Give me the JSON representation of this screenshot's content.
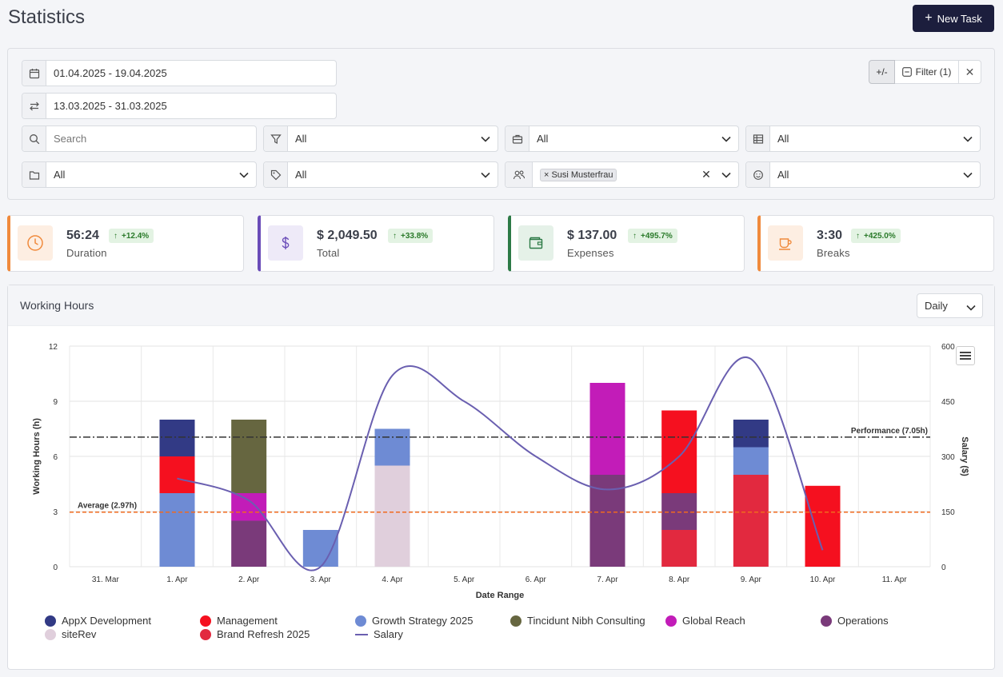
{
  "page": {
    "title": "Statistics",
    "new_task_label": "New Task"
  },
  "filters": {
    "date_range": "01.04.2025 - 19.04.2025",
    "compare_range": "13.03.2025 - 31.03.2025",
    "search_placeholder": "Search",
    "filter_all_1": "All",
    "project_all": "All",
    "table_all": "All",
    "folder_all": "All",
    "tag_all": "All",
    "user_chip": "Susi Musterfrau",
    "mood_all": "All",
    "plus_minus_label": "+/-",
    "filter_button_label": "Filter (1)"
  },
  "stats": [
    {
      "value": "56:24",
      "label": "Duration",
      "badge": "+12.4%",
      "accent": "#f08a3c",
      "icon": "clock-icon"
    },
    {
      "value": "$ 2,049.50",
      "label": "Total",
      "badge": "+33.8%",
      "accent": "#6a4cb8",
      "icon": "dollar-icon"
    },
    {
      "value": "$ 137.00",
      "label": "Expenses",
      "badge": "+495.7%",
      "accent": "#2d7a46",
      "icon": "wallet-icon"
    },
    {
      "value": "3:30",
      "label": "Breaks",
      "badge": "+425.0%",
      "accent": "#f08a3c",
      "icon": "coffee-icon"
    }
  ],
  "chart_header": {
    "title": "Working Hours",
    "interval": "Daily"
  },
  "chart_data": {
    "type": "bar",
    "stacked": true,
    "categories": [
      "31. Mar",
      "1. Apr",
      "2. Apr",
      "3. Apr",
      "4. Apr",
      "5. Apr",
      "6. Apr",
      "7. Apr",
      "8. Apr",
      "9. Apr",
      "10. Apr",
      "11. Apr"
    ],
    "xlabel": "Date Range",
    "ylabel": "Working Hours (h)",
    "y2label": "Salary ($)",
    "ylim": [
      0,
      12
    ],
    "yticks": [
      0,
      3,
      6,
      9,
      12
    ],
    "y2lim": [
      0,
      600
    ],
    "y2ticks": [
      0,
      150,
      300,
      450,
      600
    ],
    "series": [
      {
        "name": "AppX Development",
        "color": "#323a85",
        "values": [
          0,
          2,
          0,
          0,
          0,
          0,
          0,
          0,
          0,
          1.5,
          0,
          0
        ]
      },
      {
        "name": "Management",
        "color": "#f5101f",
        "values": [
          0,
          2,
          0,
          0,
          0,
          0,
          0,
          0,
          4.5,
          0,
          4.4,
          0
        ]
      },
      {
        "name": "Growth Strategy 2025",
        "color": "#6e8bd4",
        "values": [
          0,
          4,
          0,
          2,
          2,
          0,
          0,
          0,
          0,
          1.5,
          0,
          0
        ]
      },
      {
        "name": "Tincidunt Nibh Consulting",
        "color": "#666640",
        "values": [
          0,
          0,
          4,
          0,
          0,
          0,
          0,
          0,
          0,
          0,
          0,
          0
        ]
      },
      {
        "name": "Global Reach",
        "color": "#c21cb8",
        "values": [
          0,
          0,
          1.5,
          0,
          0,
          0,
          0,
          5,
          0,
          0,
          0,
          0
        ]
      },
      {
        "name": "Operations",
        "color": "#7a3a7a",
        "values": [
          0,
          0,
          2.5,
          0,
          0,
          0,
          0,
          5,
          2,
          0,
          0,
          0
        ]
      },
      {
        "name": "siteRev",
        "color": "#e0cfdc",
        "values": [
          0,
          0,
          0,
          0,
          5.5,
          0,
          0,
          0,
          0,
          0,
          0,
          0
        ]
      },
      {
        "name": "Brand Refresh 2025",
        "color": "#e2293f",
        "values": [
          0,
          0,
          0,
          0,
          0,
          0,
          0,
          0,
          2,
          5,
          0,
          0
        ]
      }
    ],
    "stack_order": [
      [],
      [
        "Growth Strategy 2025",
        "Management",
        "AppX Development"
      ],
      [
        "Operations",
        "Global Reach",
        "Tincidunt Nibh Consulting"
      ],
      [
        "Growth Strategy 2025"
      ],
      [
        "siteRev",
        "Growth Strategy 2025"
      ],
      [],
      [],
      [
        "Operations",
        "Global Reach"
      ],
      [
        "Brand Refresh 2025",
        "Operations",
        "Management"
      ],
      [
        "Brand Refresh 2025",
        "Growth Strategy 2025",
        "AppX Development"
      ],
      [
        "Management"
      ],
      []
    ],
    "line": {
      "name": "Salary",
      "color": "#6a5fb0",
      "axis": "y2",
      "points": [
        [
          1,
          240
        ],
        [
          2,
          180
        ],
        [
          3,
          0
        ],
        [
          4,
          520
        ],
        [
          5,
          450
        ],
        [
          6,
          300
        ],
        [
          7,
          210
        ],
        [
          8,
          300
        ],
        [
          9,
          565
        ],
        [
          10,
          45
        ]
      ]
    },
    "reference_lines": [
      {
        "label": "Average (2.97h)",
        "value": 2.97,
        "color": "#f06a1e",
        "style": "dashed",
        "label_side": "left"
      },
      {
        "label": "Performance (7.05h)",
        "value": 7.05,
        "color": "#333333",
        "style": "dashdot",
        "label_side": "right"
      }
    ],
    "legend": [
      "AppX Development",
      "Management",
      "Growth Strategy 2025",
      "Tincidunt Nibh Consulting",
      "Global Reach",
      "Operations",
      "siteRev",
      "Brand Refresh 2025",
      "Salary"
    ]
  }
}
